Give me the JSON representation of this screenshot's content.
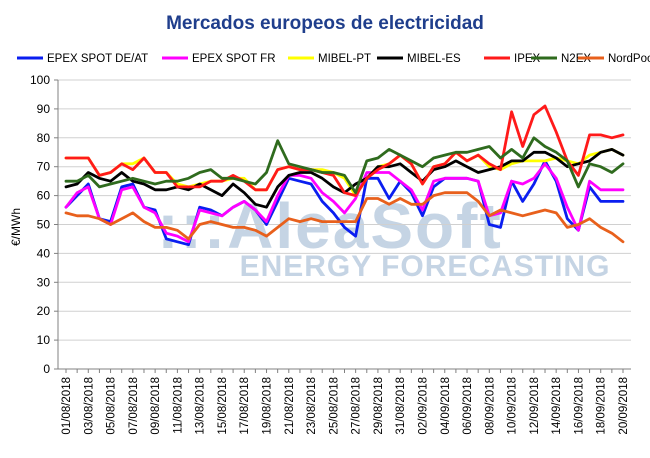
{
  "chart_data": {
    "type": "line",
    "title": "Mercados europeos de electricidad",
    "xlabel": "",
    "ylabel": "€/MWh",
    "ylim": [
      0,
      100
    ],
    "yticks": [
      0,
      10,
      20,
      30,
      40,
      50,
      60,
      70,
      80,
      90,
      100
    ],
    "grid": true,
    "legend_position": "top",
    "watermark": {
      "brand": "AleaSoft",
      "tagline": "ENERGY FORECASTING"
    },
    "title_color": "#1f3e8c",
    "x": [
      "01/08/2018",
      "02/08/2018",
      "03/08/2018",
      "04/08/2018",
      "05/08/2018",
      "06/08/2018",
      "07/08/2018",
      "08/08/2018",
      "09/08/2018",
      "10/08/2018",
      "11/08/2018",
      "12/08/2018",
      "13/08/2018",
      "14/08/2018",
      "15/08/2018",
      "16/08/2018",
      "17/08/2018",
      "18/08/2018",
      "19/08/2018",
      "20/08/2018",
      "21/08/2018",
      "22/08/2018",
      "23/08/2018",
      "24/08/2018",
      "25/08/2018",
      "26/08/2018",
      "27/08/2018",
      "28/08/2018",
      "29/08/2018",
      "30/08/2018",
      "31/08/2018",
      "01/09/2018",
      "02/09/2018",
      "03/09/2018",
      "04/09/2018",
      "05/09/2018",
      "06/09/2018",
      "07/09/2018",
      "08/09/2018",
      "09/09/2018",
      "10/09/2018",
      "11/09/2018",
      "12/09/2018",
      "13/09/2018",
      "14/09/2018",
      "15/09/2018",
      "16/09/2018",
      "17/09/2018",
      "18/09/2018",
      "19/09/2018",
      "20/09/2018"
    ],
    "x_tick_labels": [
      "01/08/2018",
      "03/08/2018",
      "05/08/2018",
      "07/08/2018",
      "09/08/2018",
      "11/08/2018",
      "13/08/2018",
      "15/08/2018",
      "17/08/2018",
      "19/08/2018",
      "21/08/2018",
      "23/08/2018",
      "25/08/2018",
      "27/08/2018",
      "29/08/2018",
      "31/08/2018",
      "02/09/2018",
      "04/09/2018",
      "06/09/2018",
      "08/09/2018",
      "10/09/2018",
      "12/09/2018",
      "14/09/2018",
      "16/09/2018",
      "18/09/2018",
      "20/09/2018"
    ],
    "series": [
      {
        "name": "EPEX SPOT DE/AT",
        "color": "#0a1ef0",
        "values": [
          56,
          60,
          64,
          52,
          51,
          63,
          64,
          56,
          55,
          45,
          44,
          43,
          56,
          55,
          53,
          56,
          58,
          55,
          50,
          58,
          66,
          65,
          64,
          58,
          54,
          49,
          46,
          66,
          66,
          59,
          65,
          61,
          53,
          63,
          66,
          66,
          66,
          65,
          50,
          49,
          65,
          58,
          64,
          72,
          65,
          52,
          48,
          63,
          58,
          58,
          58
        ]
      },
      {
        "name": "EPEX SPOT FR",
        "color": "#ff00ff",
        "values": [
          56,
          61,
          63,
          52,
          50,
          62,
          63,
          56,
          54,
          47,
          46,
          44,
          55,
          54,
          53,
          56,
          58,
          55,
          51,
          60,
          67,
          67,
          66,
          61,
          58,
          54,
          59,
          68,
          68,
          68,
          65,
          62,
          55,
          65,
          66,
          66,
          66,
          65,
          53,
          54,
          65,
          64,
          66,
          71,
          66,
          56,
          48,
          65,
          62,
          62,
          62
        ]
      },
      {
        "name": "MIBEL-PT",
        "color": "#ffff00",
        "values": [
          73,
          73,
          73,
          67,
          68,
          71,
          71,
          73,
          68,
          68,
          64,
          63,
          64,
          65,
          65,
          66,
          66,
          62,
          62,
          69,
          70,
          69,
          69,
          69,
          68,
          66,
          60,
          66,
          70,
          71,
          74,
          71,
          64,
          70,
          71,
          75,
          72,
          74,
          70,
          69,
          71,
          72,
          72,
          72,
          73,
          72,
          71,
          74,
          75,
          76,
          74
        ]
      },
      {
        "name": "MIBEL-ES",
        "color": "#000000",
        "values": [
          63,
          64,
          68,
          66,
          65,
          68,
          65,
          64,
          62,
          62,
          63,
          62,
          64,
          62,
          60,
          64,
          61,
          57,
          56,
          63,
          67,
          68,
          68,
          66,
          63,
          61,
          64,
          66,
          70,
          70,
          71,
          68,
          65,
          69,
          70,
          72,
          70,
          68,
          69,
          70,
          72,
          72,
          75,
          75,
          73,
          70,
          71,
          72,
          75,
          76,
          74
        ]
      },
      {
        "name": "IPEX",
        "color": "#ff1a1a",
        "values": [
          73,
          73,
          73,
          67,
          68,
          71,
          69,
          73,
          68,
          68,
          63,
          63,
          63,
          65,
          65,
          67,
          65,
          62,
          62,
          69,
          70,
          69,
          69,
          68,
          67,
          61,
          60,
          66,
          69,
          71,
          74,
          71,
          64,
          70,
          71,
          75,
          72,
          74,
          71,
          69,
          89,
          77,
          88,
          91,
          82,
          72,
          67,
          81,
          81,
          80,
          81
        ]
      },
      {
        "name": "N2EX",
        "color": "#2f6b1e",
        "values": [
          65,
          65,
          67,
          63,
          64,
          65,
          66,
          65,
          64,
          65,
          65,
          66,
          68,
          69,
          66,
          66,
          65,
          64,
          68,
          79,
          71,
          70,
          69,
          68,
          68,
          67,
          61,
          72,
          73,
          76,
          74,
          72,
          70,
          73,
          74,
          75,
          75,
          76,
          77,
          73,
          76,
          73,
          80,
          77,
          75,
          72,
          63,
          71,
          70,
          68,
          71
        ]
      },
      {
        "name": "NordPool",
        "color": "#e8601c",
        "values": [
          54,
          53,
          53,
          52,
          50,
          52,
          54,
          51,
          49,
          49,
          48,
          45,
          50,
          51,
          50,
          49,
          49,
          48,
          46,
          49,
          52,
          51,
          52,
          51,
          51,
          51,
          51,
          59,
          59,
          57,
          59,
          57,
          57,
          60,
          61,
          61,
          61,
          58,
          53,
          55,
          54,
          53,
          54,
          55,
          54,
          49,
          50,
          52,
          49,
          47,
          44
        ]
      }
    ]
  }
}
